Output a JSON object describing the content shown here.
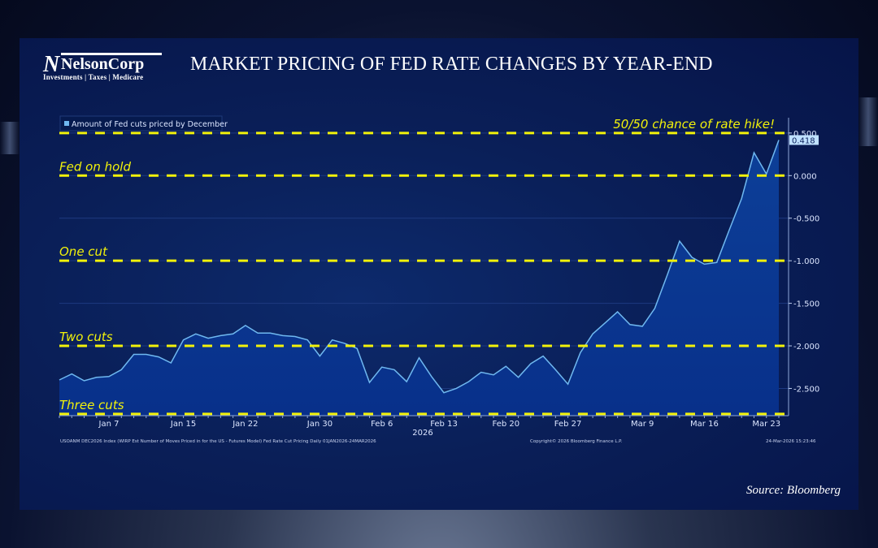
{
  "logo": {
    "mark": "N",
    "name": "NelsonCorp",
    "tagline": "Investments | Taxes | Medicare"
  },
  "title": "MARKET PRICING OF FED RATE CHANGES BY YEAR-END",
  "source": "Source: Bloomberg",
  "footer": {
    "left": "USOANM DEC2026 Index (WIRP Est Number of Moves Priced in for the US - Futures Model) Fed Rate Cut Pricing Daily 01JAN2026-24MAR2026",
    "center": "Copyright© 2026 Bloomberg Finance L.P.",
    "right": "24-Mar-2026 15:23:46"
  },
  "colors": {
    "line": "#6fb8f0",
    "fill": "#0a3a8e",
    "annotation": "#f2f20a",
    "panel": "#0a1f58"
  },
  "chart_data": {
    "type": "area",
    "legend": {
      "label": "Amount of Fed cuts priced by December",
      "placement": "top-left"
    },
    "xlabel": "2026",
    "ylabel": "",
    "ylim": [
      -2.82,
      0.68
    ],
    "yticks": [
      0.5,
      0,
      -0.5,
      -1,
      -1.5,
      -2,
      -2.5
    ],
    "ytick_labels": [
      "0.500",
      "0.000",
      "-0.500",
      "-1.000",
      "-1.500",
      "-2.000",
      "-2.500"
    ],
    "y_axis_side": "right",
    "xticks": [
      {
        "date": "2026-01-07",
        "label": "Jan 7"
      },
      {
        "date": "2026-01-15",
        "label": "Jan 15"
      },
      {
        "date": "2026-01-22",
        "label": "Jan 22"
      },
      {
        "date": "2026-01-30",
        "label": "Jan 30"
      },
      {
        "date": "2026-02-06",
        "label": "Feb 6"
      },
      {
        "date": "2026-02-13",
        "label": "Feb 13"
      },
      {
        "date": "2026-02-20",
        "label": "Feb 20"
      },
      {
        "date": "2026-02-27",
        "label": "Feb 27"
      },
      {
        "date": "2026-03-09",
        "label": "Mar 9"
      },
      {
        "date": "2026-03-16",
        "label": "Mar 16"
      },
      {
        "date": "2026-03-23",
        "label": "Mar 23"
      }
    ],
    "last_value_label": "0.418",
    "series": [
      {
        "dates": [
          "2026-01-01",
          "2026-01-02",
          "2026-01-05",
          "2026-01-06",
          "2026-01-07",
          "2026-01-08",
          "2026-01-09",
          "2026-01-12",
          "2026-01-13",
          "2026-01-14",
          "2026-01-15",
          "2026-01-16",
          "2026-01-19",
          "2026-01-20",
          "2026-01-21",
          "2026-01-22",
          "2026-01-23",
          "2026-01-26",
          "2026-01-27",
          "2026-01-28",
          "2026-01-29",
          "2026-01-30",
          "2026-02-02",
          "2026-02-03",
          "2026-02-04",
          "2026-02-05",
          "2026-02-06",
          "2026-02-09",
          "2026-02-10",
          "2026-02-11",
          "2026-02-12",
          "2026-02-13",
          "2026-02-16",
          "2026-02-17",
          "2026-02-18",
          "2026-02-19",
          "2026-02-20",
          "2026-02-23",
          "2026-02-24",
          "2026-02-25",
          "2026-02-26",
          "2026-02-27",
          "2026-03-02",
          "2026-03-03",
          "2026-03-04",
          "2026-03-05",
          "2026-03-06",
          "2026-03-09",
          "2026-03-10",
          "2026-03-11",
          "2026-03-12",
          "2026-03-13",
          "2026-03-16",
          "2026-03-17",
          "2026-03-18",
          "2026-03-19",
          "2026-03-20",
          "2026-03-23",
          "2026-03-24"
        ],
        "values": [
          -2.4,
          -2.33,
          -2.41,
          -2.37,
          -2.36,
          -2.28,
          -2.1,
          -2.1,
          -2.13,
          -2.2,
          -1.93,
          -1.86,
          -1.91,
          -1.88,
          -1.86,
          -1.76,
          -1.85,
          -1.85,
          -1.88,
          -1.89,
          -1.93,
          -2.12,
          -1.93,
          -1.97,
          -2.03,
          -2.43,
          -2.25,
          -2.28,
          -2.42,
          -2.14,
          -2.36,
          -2.55,
          -2.5,
          -2.42,
          -2.31,
          -2.34,
          -2.24,
          -2.37,
          -2.21,
          -2.12,
          -2.28,
          -2.45,
          -2.08,
          -1.86,
          -1.73,
          -1.6,
          -1.75,
          -1.77,
          -1.56,
          -1.17,
          -0.77,
          -0.96,
          -1.04,
          -1.02,
          -0.64,
          -0.27,
          0.27,
          0.02,
          0.418
        ]
      }
    ],
    "annotations": [
      {
        "y": 0.5,
        "label": "50/50 chance of rate hike!",
        "align": "right"
      },
      {
        "y": 0,
        "label": "Fed on hold",
        "align": "left"
      },
      {
        "y": -1,
        "label": "One cut",
        "align": "left"
      },
      {
        "y": -2,
        "label": "Two cuts",
        "align": "left"
      },
      {
        "y": -2.8,
        "label": "Three cuts",
        "align": "left"
      }
    ]
  }
}
